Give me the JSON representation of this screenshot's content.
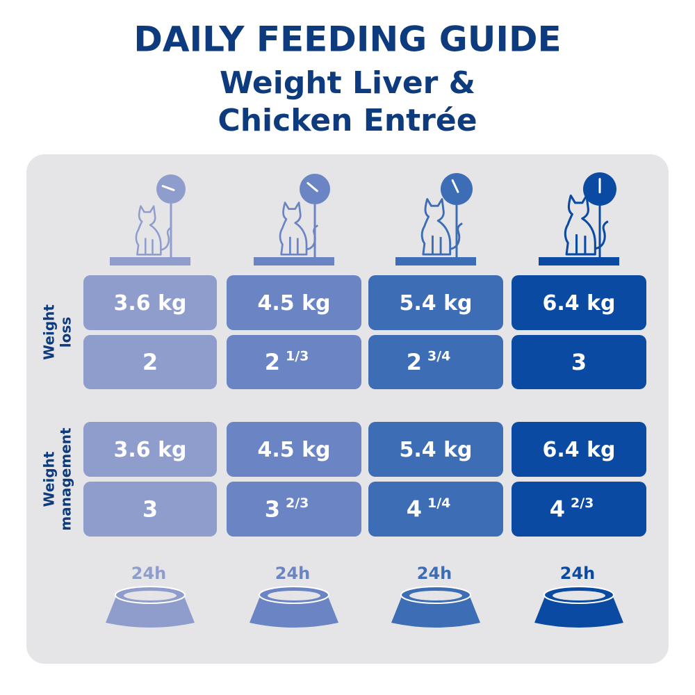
{
  "header": {
    "title": "DAILY FEEDING GUIDE",
    "subtitle_lines": [
      "Weight Liver &",
      "Chicken Entrée"
    ]
  },
  "columns": [
    {
      "color": "#8f9dcc"
    },
    {
      "color": "#6b84c4"
    },
    {
      "color": "#3d6db5"
    },
    {
      "color": "#0b4aa2"
    }
  ],
  "sections": [
    {
      "label_lines": [
        "Weight",
        "loss"
      ],
      "weights": [
        "3.6 kg",
        "4.5 kg",
        "5.4 kg",
        "6.4 kg"
      ],
      "amounts": [
        {
          "whole": "2"
        },
        {
          "whole": "2",
          "fraction": "1/3"
        },
        {
          "whole": "2",
          "fraction": "3/4"
        },
        {
          "whole": "3"
        }
      ]
    },
    {
      "label_lines": [
        "Weight",
        "management"
      ],
      "weights": [
        "3.6 kg",
        "4.5 kg",
        "5.4 kg",
        "6.4 kg"
      ],
      "amounts": [
        {
          "whole": "3"
        },
        {
          "whole": "3",
          "fraction": "2/3"
        },
        {
          "whole": "4",
          "fraction": "1/4"
        },
        {
          "whole": "4",
          "fraction": "2/3"
        }
      ]
    }
  ],
  "bowls": [
    "24h",
    "24h",
    "24h",
    "24h"
  ]
}
